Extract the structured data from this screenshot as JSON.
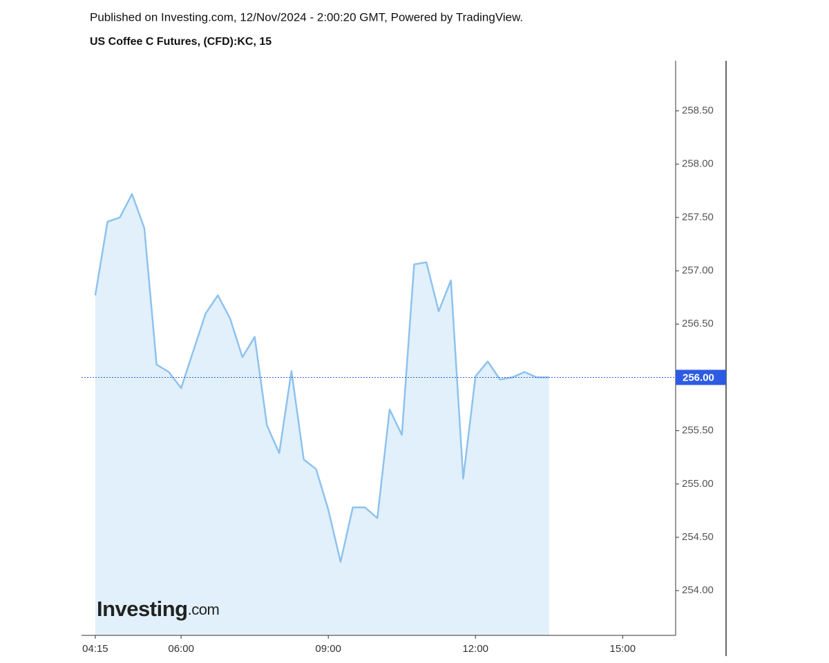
{
  "header": {
    "published": "Published on Investing.com, 12/Nov/2024 - 2:00:20 GMT, Powered by TradingView.",
    "logo": "Investing"
  },
  "logo_suffix": ".com",
  "chart_data": {
    "type": "area",
    "title": "US Coffee C Futures, (CFD):KC, 15",
    "x": [
      4.25,
      4.5,
      4.75,
      5,
      5.25,
      5.5,
      5.75,
      6,
      6.25,
      6.5,
      6.75,
      7,
      7.25,
      7.5,
      7.75,
      8,
      8.25,
      8.5,
      8.75,
      9,
      9.25,
      9.5,
      9.75,
      10,
      10.25,
      10.5,
      10.75,
      11,
      11.25,
      11.5,
      11.75,
      12,
      12.25,
      12.5,
      12.75,
      13,
      13.25,
      13.5
    ],
    "values": [
      256.77,
      257.46,
      257.5,
      257.72,
      257.4,
      256.12,
      256.05,
      255.9,
      256.25,
      256.6,
      256.77,
      256.55,
      256.19,
      256.38,
      255.55,
      255.29,
      256.06,
      255.23,
      255.14,
      254.76,
      254.27,
      254.78,
      254.78,
      254.68,
      255.7,
      255.46,
      257.06,
      257.08,
      256.62,
      256.91,
      255.05,
      256.01,
      256.15,
      255.98,
      256.0,
      256.05,
      256.0,
      256.0
    ],
    "color": "#8ec2ee",
    "fill": "#e1f0fa",
    "xlim": [
      3.97,
      16.08
    ],
    "xticks": [
      {
        "value": 4.25,
        "label": "04:15"
      },
      {
        "value": 6,
        "label": "06:00"
      },
      {
        "value": 9,
        "label": "09:00"
      },
      {
        "value": 12,
        "label": "12:00"
      },
      {
        "value": 15,
        "label": "15:00"
      }
    ],
    "ylim": [
      253.58,
      258.97
    ],
    "yticks": [
      {
        "value": 254,
        "label": "254.00"
      },
      {
        "value": 254.5,
        "label": "254.50"
      },
      {
        "value": 255,
        "label": "255.00"
      },
      {
        "value": 255.5,
        "label": "255.50"
      },
      {
        "value": 256,
        "label": "256.00"
      },
      {
        "value": 256.5,
        "label": "256.50"
      },
      {
        "value": 257,
        "label": "257.00"
      },
      {
        "value": 257.5,
        "label": "257.50"
      },
      {
        "value": 258,
        "label": "258.00"
      },
      {
        "value": 258.5,
        "label": "258.50"
      }
    ],
    "price_line": {
      "value": 256.0,
      "label": "256.00",
      "color": "#2d5be3"
    }
  }
}
